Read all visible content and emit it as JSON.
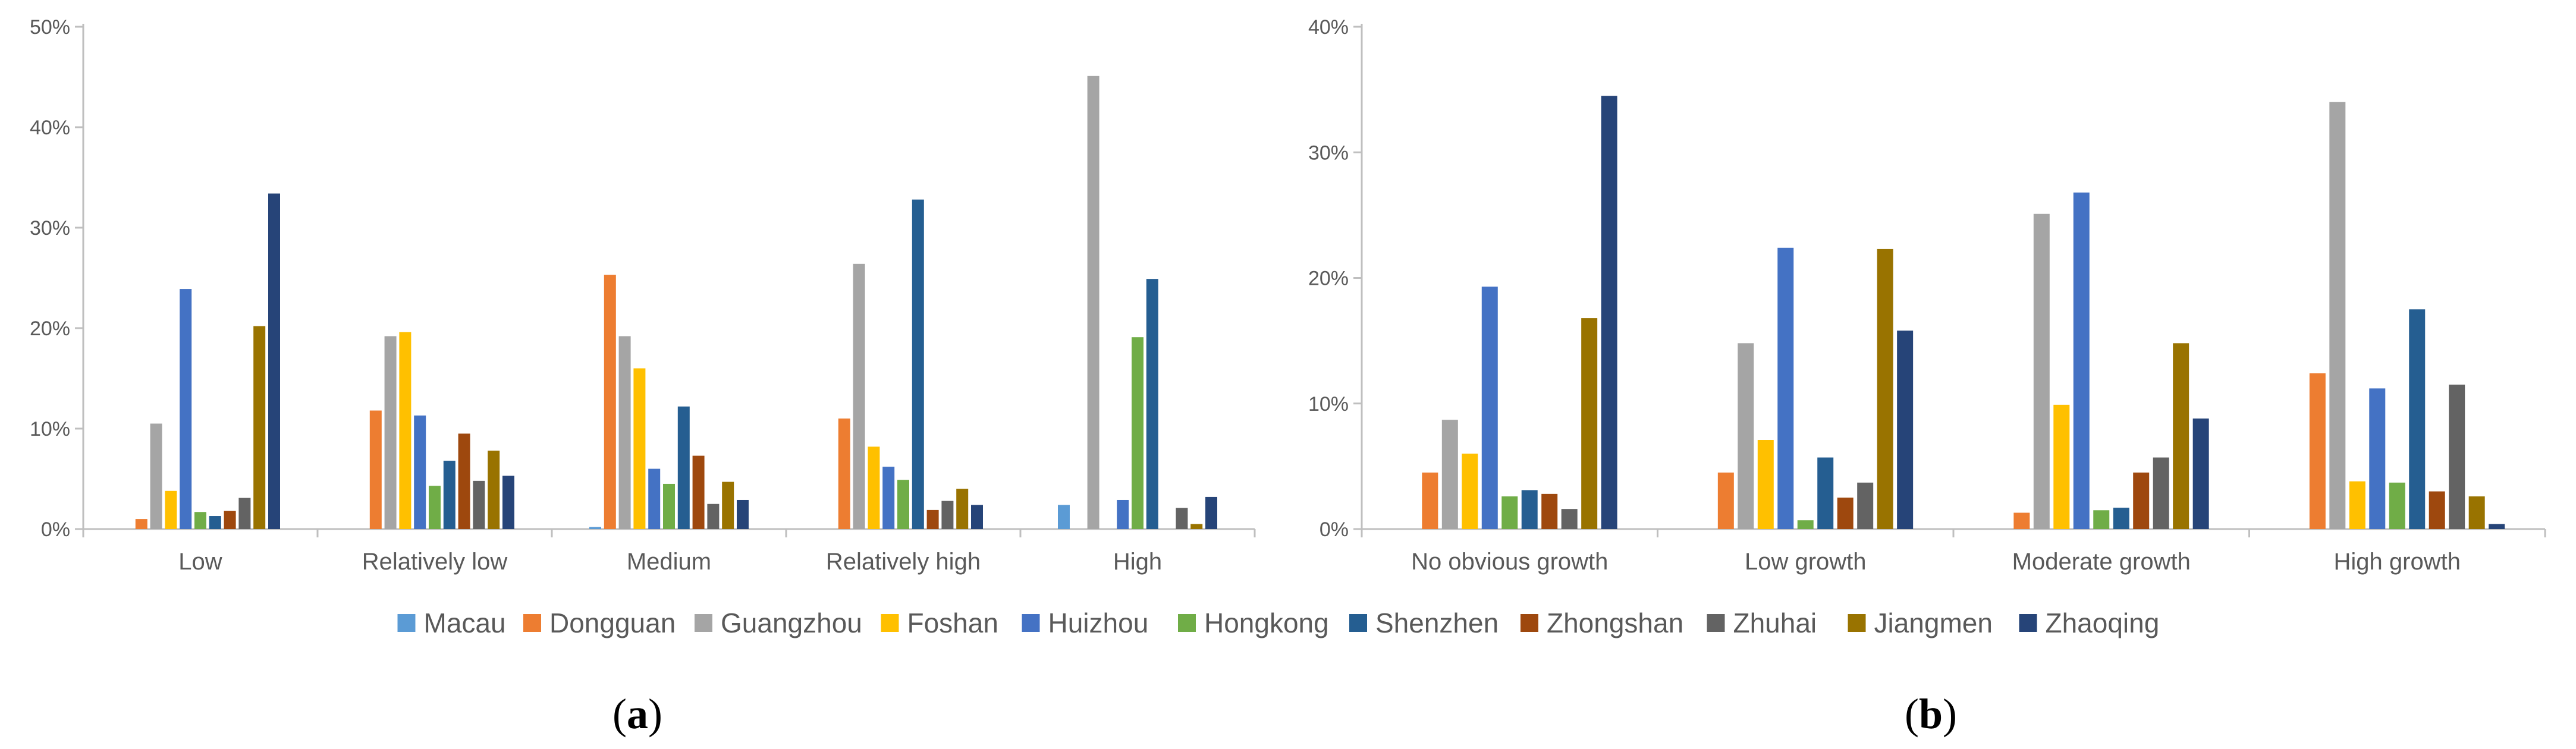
{
  "colors": {
    "Macau": "#5b9bd5",
    "Dongguan": "#ed7d31",
    "Guangzhou": "#a5a5a5",
    "Foshan": "#ffc000",
    "Huizhou": "#4472c4",
    "Hongkong": "#70ad47",
    "Shenzhen": "#255e91",
    "Zhongshan": "#9e480e",
    "Zhuhai": "#636363",
    "Jiangmen": "#997300",
    "Zhaoqing": "#264478"
  },
  "legend": [
    "Macau",
    "Dongguan",
    "Guangzhou",
    "Foshan",
    "Huizhou",
    "Hongkong",
    "Shenzhen",
    "Zhongshan",
    "Zhuhai",
    "Jiangmen",
    "Zhaoqing"
  ],
  "chart_data": [
    {
      "type": "bar",
      "panel_label": "a",
      "categories": [
        "Low",
        "Relatively low",
        "Medium",
        "Relatively high",
        "High"
      ],
      "ylim": [
        0,
        50
      ],
      "yticks": [
        "0%",
        "10%",
        "20%",
        "30%",
        "40%",
        "50%"
      ],
      "series": [
        {
          "name": "Macau",
          "values": [
            0,
            0,
            0.2,
            0,
            2.4
          ]
        },
        {
          "name": "Dongguan",
          "values": [
            1.0,
            11.8,
            25.3,
            11.0,
            0
          ]
        },
        {
          "name": "Guangzhou",
          "values": [
            10.5,
            19.2,
            19.2,
            26.4,
            45.1
          ]
        },
        {
          "name": "Foshan",
          "values": [
            3.8,
            19.6,
            16.0,
            8.2,
            0
          ]
        },
        {
          "name": "Huizhou",
          "values": [
            23.9,
            11.3,
            6.0,
            6.2,
            2.9
          ]
        },
        {
          "name": "Hongkong",
          "values": [
            1.7,
            4.3,
            4.5,
            4.9,
            19.1
          ]
        },
        {
          "name": "Shenzhen",
          "values": [
            1.3,
            6.8,
            12.2,
            32.8,
            24.9
          ]
        },
        {
          "name": "Zhongshan",
          "values": [
            1.8,
            9.5,
            7.3,
            1.9,
            0
          ]
        },
        {
          "name": "Zhuhai",
          "values": [
            3.1,
            4.8,
            2.5,
            2.8,
            2.1
          ]
        },
        {
          "name": "Jiangmen",
          "values": [
            20.2,
            7.8,
            4.7,
            4.0,
            0.5
          ]
        },
        {
          "name": "Zhaoqing",
          "values": [
            33.4,
            5.3,
            2.9,
            2.4,
            3.2
          ]
        }
      ]
    },
    {
      "type": "bar",
      "panel_label": "b",
      "categories": [
        "No obvious growth",
        "Low growth",
        "Moderate growth",
        "High growth"
      ],
      "ylim": [
        0,
        40
      ],
      "yticks": [
        "0%",
        "10%",
        "20%",
        "30%",
        "40%"
      ],
      "series": [
        {
          "name": "Macau",
          "values": [
            0,
            0,
            0,
            0
          ]
        },
        {
          "name": "Dongguan",
          "values": [
            4.5,
            4.5,
            1.3,
            12.4
          ]
        },
        {
          "name": "Guangzhou",
          "values": [
            8.7,
            14.8,
            25.1,
            34.0
          ]
        },
        {
          "name": "Foshan",
          "values": [
            6.0,
            7.1,
            9.9,
            3.8
          ]
        },
        {
          "name": "Huizhou",
          "values": [
            19.3,
            22.4,
            26.8,
            11.2
          ]
        },
        {
          "name": "Hongkong",
          "values": [
            2.6,
            0.7,
            1.5,
            3.7
          ]
        },
        {
          "name": "Shenzhen",
          "values": [
            3.1,
            5.7,
            1.7,
            17.5
          ]
        },
        {
          "name": "Zhongshan",
          "values": [
            2.8,
            2.5,
            4.5,
            3.0
          ]
        },
        {
          "name": "Zhuhai",
          "values": [
            1.6,
            3.7,
            5.7,
            11.5
          ]
        },
        {
          "name": "Jiangmen",
          "values": [
            16.8,
            22.3,
            14.8,
            2.6
          ]
        },
        {
          "name": "Zhaoqing",
          "values": [
            34.5,
            15.8,
            8.8,
            0.4
          ]
        }
      ]
    }
  ]
}
